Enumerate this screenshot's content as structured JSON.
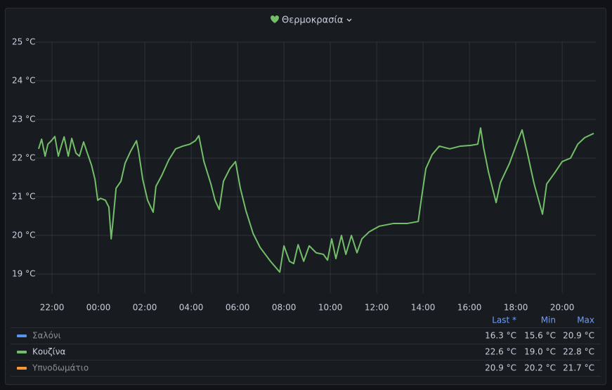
{
  "chart_data": {
    "type": "line",
    "title": "Θερμοκρασία",
    "x": [
      21.42,
      21.55,
      21.7,
      21.82,
      21.97,
      22.12,
      22.27,
      22.42,
      22.52,
      22.7,
      22.85,
      23.03,
      23.18,
      23.36,
      23.52,
      23.7,
      23.85,
      23.97,
      24.09,
      24.3,
      24.45,
      24.55,
      24.64,
      24.76,
      24.97,
      25.15,
      25.39,
      25.64,
      25.73,
      25.91,
      26.12,
      26.36,
      26.48,
      26.73,
      27.03,
      27.33,
      27.64,
      27.94,
      28.18,
      28.33,
      28.55,
      28.85,
      29.03,
      29.21,
      29.39,
      29.67,
      29.91,
      30.12,
      30.36,
      30.67,
      30.97,
      31.42,
      31.82,
      32.0,
      32.24,
      32.42,
      32.61,
      32.85,
      33.09,
      33.39,
      33.7,
      33.88,
      34.06,
      34.24,
      34.48,
      34.67,
      34.91,
      35.15,
      35.36,
      35.67,
      36.12,
      36.73,
      37.33,
      37.79,
      37.94,
      38.12,
      38.39,
      38.7,
      39.15,
      39.61,
      40.06,
      40.36,
      40.48,
      40.61,
      40.82,
      41.15,
      41.33,
      41.73,
      42.03,
      42.27,
      42.48,
      42.79,
      43.15,
      43.33,
      43.7,
      44.0,
      44.36,
      44.67,
      44.97,
      45.36
    ],
    "series": [
      {
        "name": "Σαλόνι",
        "color": "#5794f2",
        "hidden": true,
        "last": "16.3 °C",
        "min": "15.6 °C",
        "max": "20.9 °C"
      },
      {
        "name": "Κουζίνα",
        "color": "#73bf69",
        "hidden": false,
        "last": "22.6 °C",
        "min": "19.0 °C",
        "max": "22.8 °C",
        "values": [
          22.24,
          22.49,
          22.05,
          22.36,
          22.45,
          22.56,
          22.05,
          22.36,
          22.55,
          22.05,
          22.51,
          22.13,
          22.05,
          22.42,
          22.13,
          21.82,
          21.45,
          20.91,
          20.96,
          20.91,
          20.73,
          19.91,
          20.45,
          21.22,
          21.4,
          21.87,
          22.18,
          22.45,
          22.18,
          21.45,
          20.91,
          20.6,
          21.27,
          21.55,
          21.95,
          22.24,
          22.31,
          22.36,
          22.45,
          22.58,
          21.91,
          21.33,
          20.91,
          20.67,
          21.4,
          21.73,
          21.91,
          21.22,
          20.64,
          20.05,
          19.69,
          19.33,
          19.05,
          19.73,
          19.33,
          19.27,
          19.76,
          19.33,
          19.73,
          19.55,
          19.51,
          19.36,
          19.91,
          19.4,
          20.0,
          19.51,
          20.0,
          19.55,
          19.91,
          20.09,
          20.24,
          20.31,
          20.31,
          20.36,
          21.0,
          21.73,
          22.09,
          22.31,
          22.24,
          22.31,
          22.33,
          22.36,
          22.78,
          22.27,
          21.64,
          20.85,
          21.36,
          21.87,
          22.36,
          22.73,
          22.18,
          21.33,
          20.55,
          21.33,
          21.64,
          21.91,
          22.0,
          22.36,
          22.53,
          22.64
        ]
      },
      {
        "name": "Υπνοδωμάτιο",
        "color": "#ff9830",
        "hidden": true,
        "last": "20.9 °C",
        "min": "20.2 °C",
        "max": "21.7 °C"
      }
    ],
    "legend_columns": [
      "Last *",
      "Min",
      "Max"
    ],
    "xlim": [
      21.27,
      45.45
    ],
    "ylim": [
      18.5,
      25
    ],
    "xticks": [
      {
        "value": 22,
        "label": "22:00"
      },
      {
        "value": 24,
        "label": "00:00"
      },
      {
        "value": 26,
        "label": "02:00"
      },
      {
        "value": 28,
        "label": "04:00"
      },
      {
        "value": 30,
        "label": "06:00"
      },
      {
        "value": 32,
        "label": "08:00"
      },
      {
        "value": 34,
        "label": "10:00"
      },
      {
        "value": 36,
        "label": "12:00"
      },
      {
        "value": 38,
        "label": "14:00"
      },
      {
        "value": 40,
        "label": "16:00"
      },
      {
        "value": 42,
        "label": "18:00"
      },
      {
        "value": 44,
        "label": "20:00"
      }
    ],
    "yticks": [
      {
        "value": 19,
        "label": "19 °C"
      },
      {
        "value": 20,
        "label": "20 °C"
      },
      {
        "value": 21,
        "label": "21 °C"
      },
      {
        "value": 22,
        "label": "22 °C"
      },
      {
        "value": 23,
        "label": "23 °C"
      },
      {
        "value": 24,
        "label": "24 °C"
      },
      {
        "value": 25,
        "label": "25 °C"
      }
    ],
    "grid": true
  }
}
